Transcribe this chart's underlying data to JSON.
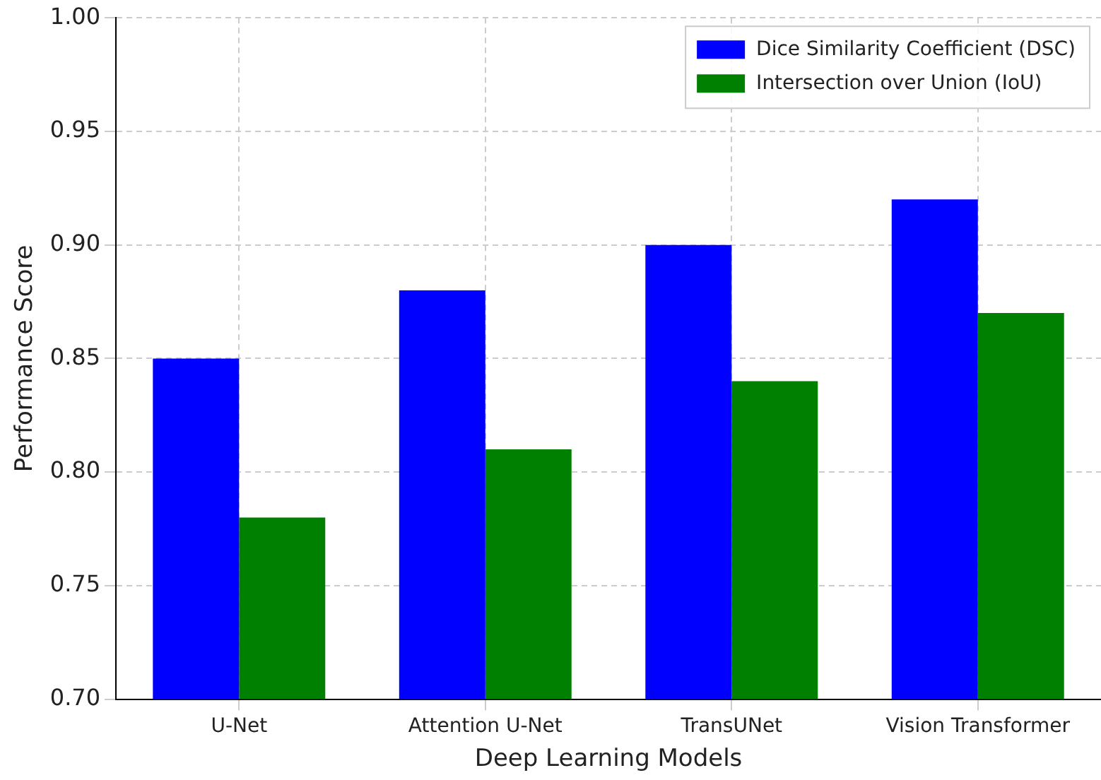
{
  "chart_data": {
    "type": "bar",
    "xlabel": "Deep Learning Models",
    "ylabel": "Performance Score",
    "categories": [
      "U-Net",
      "Attention U-Net",
      "TransUNet",
      "Vision Transformer"
    ],
    "series": [
      {
        "name": "Dice Similarity Coefficient (DSC)",
        "color": "#0000ff",
        "values": [
          0.85,
          0.88,
          0.9,
          0.92
        ]
      },
      {
        "name": "Intersection over Union (IoU)",
        "color": "#008000",
        "values": [
          0.78,
          0.81,
          0.84,
          0.87
        ]
      }
    ],
    "ylim": [
      0.7,
      1.0
    ],
    "yticks": [
      {
        "value": 0.7,
        "label": "0.70"
      },
      {
        "value": 0.75,
        "label": "0.75"
      },
      {
        "value": 0.8,
        "label": "0.80"
      },
      {
        "value": 0.85,
        "label": "0.85"
      },
      {
        "value": 0.9,
        "label": "0.90"
      },
      {
        "value": 0.95,
        "label": "0.95"
      },
      {
        "value": 1.0,
        "label": "1.00"
      }
    ],
    "grid": true,
    "legend": "top right"
  }
}
